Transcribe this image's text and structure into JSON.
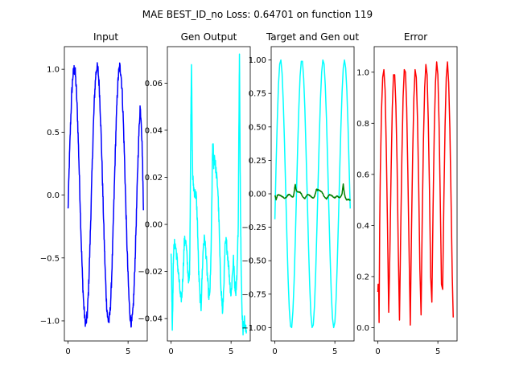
{
  "chart_data": {
    "title": "MAE BEST_ID_no Loss: 0.64701 on function 119",
    "panels": [
      {
        "type": "line",
        "title": "Input",
        "xlim": [
          -0.31,
          6.6
        ],
        "ylim": [
          -1.16,
          1.18
        ],
        "xticks": [
          0,
          5
        ],
        "xtick_labels": [
          "0",
          "5"
        ],
        "yticks": [
          -1.0,
          -0.5,
          0.0,
          0.5,
          1.0
        ],
        "ytick_labels": [
          "−1.0",
          "−0.5",
          "0.0",
          "0.5",
          "1.0"
        ],
        "series": [
          {
            "color": "#0000ff",
            "noise": 0.045,
            "x": [
              0,
              0.1,
              0.2,
              0.3,
              0.4,
              0.5,
              0.6,
              0.7,
              0.8,
              0.9,
              1.0,
              1.1,
              1.2,
              1.3,
              1.4,
              1.5,
              1.6,
              1.7,
              1.8,
              1.9,
              2.0,
              2.1,
              2.2,
              2.3,
              2.4,
              2.5,
              2.6,
              2.7,
              2.8,
              2.9,
              3.0,
              3.1,
              3.2,
              3.3,
              3.4,
              3.5,
              3.6,
              3.7,
              3.8,
              3.9,
              4.0,
              4.1,
              4.2,
              4.3,
              4.4,
              4.5,
              4.6,
              4.7,
              4.8,
              4.9,
              5.0,
              5.1,
              5.2,
              5.3,
              5.4,
              5.5,
              5.6,
              5.7,
              5.8,
              5.9,
              6.0,
              6.1,
              6.2,
              6.28
            ],
            "y": [
              -0.12,
              0.25,
              0.55,
              0.8,
              0.95,
              1.0,
              0.97,
              0.82,
              0.58,
              0.28,
              -0.05,
              -0.38,
              -0.66,
              -0.87,
              -0.99,
              -1.02,
              -0.95,
              -0.76,
              -0.48,
              -0.15,
              0.2,
              0.52,
              0.78,
              0.95,
              1.02,
              0.99,
              0.86,
              0.63,
              0.34,
              0.0,
              -0.33,
              -0.62,
              -0.85,
              -0.98,
              -1.01,
              -0.93,
              -0.74,
              -0.46,
              -0.13,
              0.22,
              0.54,
              0.8,
              0.96,
              1.02,
              0.98,
              0.84,
              0.6,
              0.3,
              -0.04,
              -0.37,
              -0.65,
              -0.87,
              -0.99,
              -1.02,
              -0.94,
              -0.75,
              -0.47,
              -0.15,
              0.2,
              0.48,
              0.7,
              0.6,
              0.3,
              -0.12
            ]
          }
        ]
      },
      {
        "type": "line",
        "title": "Gen Output",
        "xlim": [
          -0.31,
          6.6
        ],
        "ylim": [
          -0.0495,
          0.0755
        ],
        "xticks": [
          0,
          5
        ],
        "xtick_labels": [
          "0",
          "5"
        ],
        "yticks": [
          -0.04,
          -0.02,
          0.0,
          0.02,
          0.04,
          0.06
        ],
        "ytick_labels": [
          "−0.04",
          "−0.02",
          "0.00",
          "0.02",
          "0.04",
          "0.06"
        ],
        "series": [
          {
            "color": "#00ffff",
            "noise": 0.0025,
            "x": [
              0,
              0.05,
              0.1,
              0.15,
              0.2,
              0.3,
              0.4,
              0.5,
              0.6,
              0.7,
              0.8,
              0.9,
              1.0,
              1.1,
              1.2,
              1.3,
              1.4,
              1.5,
              1.55,
              1.6,
              1.65,
              1.7,
              1.75,
              1.8,
              1.9,
              2.0,
              2.1,
              2.2,
              2.3,
              2.4,
              2.5,
              2.6,
              2.7,
              2.8,
              2.9,
              3.0,
              3.1,
              3.2,
              3.3,
              3.4,
              3.45,
              3.5,
              3.55,
              3.6,
              3.7,
              3.8,
              3.9,
              4.0,
              4.1,
              4.2,
              4.3,
              4.4,
              4.5,
              4.6,
              4.7,
              4.8,
              4.9,
              5.0,
              5.1,
              5.2,
              5.3,
              5.4,
              5.5,
              5.6,
              5.65,
              5.7,
              5.75,
              5.8,
              5.85,
              5.9,
              6.0,
              6.1,
              6.2,
              6.28
            ],
            "y": [
              -0.01,
              -0.025,
              -0.044,
              -0.03,
              -0.012,
              -0.008,
              -0.01,
              -0.015,
              -0.02,
              -0.026,
              -0.032,
              -0.03,
              -0.02,
              -0.008,
              -0.006,
              -0.012,
              -0.02,
              -0.025,
              -0.018,
              0.01,
              0.045,
              0.07,
              0.04,
              0.02,
              0.015,
              0.013,
              0.012,
              0.0,
              -0.02,
              -0.03,
              -0.035,
              -0.02,
              -0.008,
              -0.006,
              -0.012,
              -0.02,
              -0.028,
              -0.032,
              -0.02,
              0.01,
              0.03,
              0.035,
              0.025,
              0.03,
              0.025,
              0.02,
              0.015,
              0.0,
              -0.02,
              -0.03,
              -0.038,
              -0.025,
              -0.01,
              -0.007,
              -0.012,
              -0.018,
              -0.025,
              -0.03,
              -0.022,
              -0.015,
              -0.025,
              -0.028,
              -0.02,
              0.0,
              0.04,
              0.072,
              0.03,
              0.0,
              -0.02,
              -0.035,
              -0.045,
              -0.04,
              -0.045,
              -0.045
            ]
          }
        ]
      },
      {
        "type": "line",
        "title": "Target and Gen out",
        "xlim": [
          -0.31,
          6.6
        ],
        "ylim": [
          -1.1,
          1.1
        ],
        "xticks": [
          0,
          5
        ],
        "xtick_labels": [
          "0",
          "5"
        ],
        "yticks": [
          -1.0,
          -0.75,
          -0.5,
          -0.25,
          0.0,
          0.25,
          0.5,
          0.75,
          1.0
        ],
        "ytick_labels": [
          "−1.00",
          "−0.75",
          "−0.50",
          "−0.25",
          "0.00",
          "0.25",
          "0.50",
          "0.75",
          "1.00"
        ],
        "series": [
          {
            "color": "#00ffff",
            "noise": 0,
            "x": [
              0,
              0.1,
              0.2,
              0.3,
              0.4,
              0.5,
              0.6,
              0.7,
              0.8,
              0.9,
              1.0,
              1.1,
              1.2,
              1.3,
              1.4,
              1.5,
              1.6,
              1.7,
              1.8,
              1.9,
              2.0,
              2.1,
              2.2,
              2.3,
              2.4,
              2.5,
              2.6,
              2.7,
              2.8,
              2.9,
              3.0,
              3.1,
              3.2,
              3.3,
              3.4,
              3.5,
              3.6,
              3.7,
              3.8,
              3.9,
              4.0,
              4.1,
              4.2,
              4.3,
              4.4,
              4.5,
              4.6,
              4.7,
              4.8,
              4.9,
              5.0,
              5.1,
              5.2,
              5.3,
              5.4,
              5.5,
              5.6,
              5.7,
              5.8,
              5.9,
              6.0,
              6.1,
              6.2,
              6.28
            ],
            "y": [
              -0.19,
              0.22,
              0.55,
              0.82,
              0.97,
              1.0,
              0.9,
              0.68,
              0.38,
              0.03,
              -0.32,
              -0.63,
              -0.86,
              -0.99,
              -1.0,
              -0.88,
              -0.66,
              -0.35,
              0.0,
              0.35,
              0.65,
              0.88,
              0.99,
              0.99,
              0.86,
              0.63,
              0.31,
              -0.03,
              -0.38,
              -0.68,
              -0.9,
              -1.0,
              -0.98,
              -0.84,
              -0.59,
              -0.27,
              0.08,
              0.42,
              0.71,
              0.91,
              1.0,
              0.97,
              0.81,
              0.56,
              0.23,
              -0.12,
              -0.46,
              -0.74,
              -0.93,
              -1.0,
              -0.96,
              -0.79,
              -0.52,
              -0.19,
              0.16,
              0.49,
              0.76,
              0.94,
              1.0,
              0.94,
              0.77,
              0.5,
              0.16,
              -0.11
            ]
          },
          {
            "color": "#008000",
            "noise": 0.0025,
            "x": [
              0,
              0.05,
              0.1,
              0.15,
              0.2,
              0.3,
              0.4,
              0.5,
              0.6,
              0.7,
              0.8,
              0.9,
              1.0,
              1.1,
              1.2,
              1.3,
              1.4,
              1.5,
              1.55,
              1.6,
              1.65,
              1.7,
              1.75,
              1.8,
              1.9,
              2.0,
              2.1,
              2.2,
              2.3,
              2.4,
              2.5,
              2.6,
              2.7,
              2.8,
              2.9,
              3.0,
              3.1,
              3.2,
              3.3,
              3.4,
              3.45,
              3.5,
              3.55,
              3.6,
              3.7,
              3.8,
              3.9,
              4.0,
              4.1,
              4.2,
              4.3,
              4.4,
              4.5,
              4.6,
              4.7,
              4.8,
              4.9,
              5.0,
              5.1,
              5.2,
              5.3,
              5.4,
              5.5,
              5.6,
              5.65,
              5.7,
              5.75,
              5.8,
              5.85,
              5.9,
              6.0,
              6.1,
              6.2,
              6.28
            ],
            "y": [
              -0.01,
              -0.025,
              -0.044,
              -0.03,
              -0.012,
              -0.008,
              -0.01,
              -0.015,
              -0.02,
              -0.026,
              -0.032,
              -0.03,
              -0.02,
              -0.008,
              -0.006,
              -0.012,
              -0.02,
              -0.025,
              -0.018,
              0.01,
              0.045,
              0.07,
              0.04,
              0.02,
              0.015,
              0.013,
              0.012,
              0.0,
              -0.02,
              -0.03,
              -0.035,
              -0.02,
              -0.008,
              -0.006,
              -0.012,
              -0.02,
              -0.028,
              -0.032,
              -0.02,
              0.01,
              0.03,
              0.035,
              0.025,
              0.03,
              0.025,
              0.02,
              0.015,
              0.0,
              -0.02,
              -0.03,
              -0.038,
              -0.025,
              -0.01,
              -0.007,
              -0.012,
              -0.018,
              -0.025,
              -0.03,
              -0.022,
              -0.015,
              -0.025,
              -0.028,
              -0.02,
              0.0,
              0.04,
              0.072,
              0.03,
              0.0,
              -0.02,
              -0.035,
              -0.045,
              -0.04,
              -0.045,
              -0.045
            ]
          }
        ]
      },
      {
        "type": "line",
        "title": "Error",
        "xlim": [
          -0.31,
          6.6
        ],
        "ylim": [
          -0.052,
          1.1
        ],
        "xticks": [
          0,
          5
        ],
        "xtick_labels": [
          "0",
          "5"
        ],
        "yticks": [
          0.0,
          0.2,
          0.4,
          0.6,
          0.8,
          1.0
        ],
        "ytick_labels": [
          "0.0",
          "0.2",
          "0.4",
          "0.6",
          "0.8",
          "1.0"
        ],
        "series": [
          {
            "color": "#ff0000",
            "noise": 0,
            "x": [
              0,
              0.02,
              0.04,
              0.06,
              0.08,
              0.1,
              0.15,
              0.2,
              0.3,
              0.4,
              0.5,
              0.6,
              0.7,
              0.8,
              0.9,
              1.0,
              1.1,
              1.2,
              1.3,
              1.4,
              1.5,
              1.6,
              1.7,
              1.8,
              1.9,
              2.0,
              2.1,
              2.2,
              2.3,
              2.4,
              2.5,
              2.6,
              2.7,
              2.8,
              2.9,
              3.0,
              3.1,
              3.2,
              3.3,
              3.4,
              3.5,
              3.6,
              3.7,
              3.8,
              3.9,
              4.0,
              4.1,
              4.2,
              4.3,
              4.4,
              4.5,
              4.6,
              4.7,
              4.8,
              4.9,
              5.0,
              5.1,
              5.2,
              5.3,
              5.4,
              5.5,
              5.6,
              5.7,
              5.8,
              5.9,
              6.0,
              6.1,
              6.2,
              6.28
            ],
            "y": [
              0.14,
              0.17,
              0.16,
              0.17,
              0.1,
              0.02,
              0.4,
              0.6,
              0.85,
              0.98,
              1.01,
              0.93,
              0.7,
              0.4,
              0.06,
              0.3,
              0.61,
              0.86,
              0.99,
              0.99,
              0.87,
              0.64,
              0.3,
              0.03,
              0.37,
              0.67,
              0.9,
              1.01,
              1.0,
              0.86,
              0.6,
              0.3,
              0.01,
              0.38,
              0.68,
              0.9,
              1.01,
              0.98,
              0.82,
              0.56,
              0.23,
              0.05,
              0.44,
              0.74,
              0.94,
              1.03,
              0.99,
              0.81,
              0.54,
              0.2,
              0.1,
              0.47,
              0.77,
              0.96,
              1.04,
              0.99,
              0.8,
              0.5,
              0.17,
              0.15,
              0.5,
              0.79,
              0.98,
              1.04,
              0.96,
              0.78,
              0.5,
              0.2,
              0.04
            ]
          }
        ]
      }
    ]
  }
}
